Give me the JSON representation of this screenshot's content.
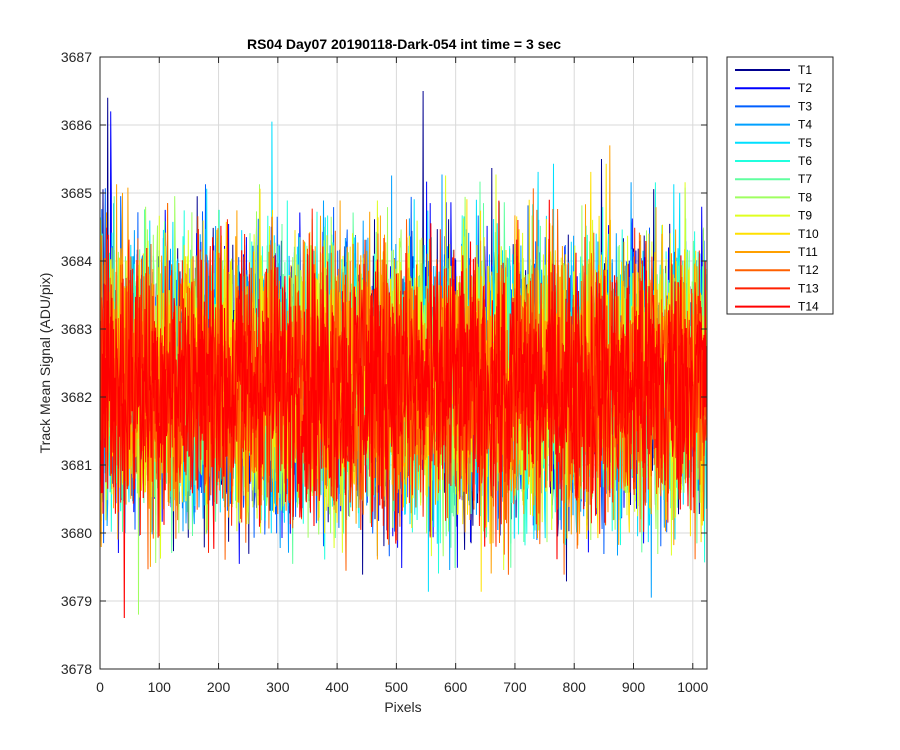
{
  "chart_data": {
    "type": "line",
    "title": "RS04 Day07 20190118-Dark-054 int time = 3 sec",
    "xlabel": "Pixels",
    "ylabel": "Track Mean Signal (ADU/pix)",
    "xlim": [
      0,
      1024
    ],
    "ylim": [
      3678,
      3687
    ],
    "xticks": [
      0,
      100,
      200,
      300,
      400,
      500,
      600,
      700,
      800,
      900,
      1000
    ],
    "yticks": [
      3678,
      3679,
      3680,
      3681,
      3682,
      3683,
      3684,
      3685,
      3686,
      3687
    ],
    "grid": true,
    "legend_position": "outside-top-right",
    "series_style": "noisy per-pixel signal around mean ~3682.2 ADU, range ~3679–3686.5",
    "series": [
      {
        "name": "T1",
        "color": "#00008f",
        "mean": 3682.3,
        "spread": 1.1,
        "peaks": [
          [
            13,
            3686.4
          ],
          [
            545,
            3686.5
          ]
        ]
      },
      {
        "name": "T2",
        "color": "#0000ff",
        "mean": 3682.3,
        "spread": 1.1,
        "peaks": [
          [
            18,
            3686.2
          ]
        ]
      },
      {
        "name": "T3",
        "color": "#005fff",
        "mean": 3682.3,
        "spread": 1.1,
        "peaks": []
      },
      {
        "name": "T4",
        "color": "#00a0ff",
        "mean": 3682.3,
        "spread": 1.1,
        "peaks": [
          [
            930,
            3679.05
          ]
        ]
      },
      {
        "name": "T5",
        "color": "#00dfff",
        "mean": 3682.3,
        "spread": 1.1,
        "peaks": [
          [
            290,
            3686.05
          ]
        ]
      },
      {
        "name": "T6",
        "color": "#20ffdf",
        "mean": 3682.3,
        "spread": 1.1,
        "peaks": []
      },
      {
        "name": "T7",
        "color": "#60ff9f",
        "mean": 3682.3,
        "spread": 1.1,
        "peaks": []
      },
      {
        "name": "T8",
        "color": "#9fff60",
        "mean": 3682.3,
        "spread": 1.1,
        "peaks": [
          [
            65,
            3678.8
          ]
        ]
      },
      {
        "name": "T9",
        "color": "#dfff20",
        "mean": 3682.3,
        "spread": 1.1,
        "peaks": []
      },
      {
        "name": "T10",
        "color": "#ffe000",
        "mean": 3682.3,
        "spread": 1.1,
        "peaks": []
      },
      {
        "name": "T11",
        "color": "#ffa000",
        "mean": 3682.3,
        "spread": 1.1,
        "peaks": [
          [
            860,
            3685.7
          ]
        ]
      },
      {
        "name": "T12",
        "color": "#ff6000",
        "mean": 3682.2,
        "spread": 1.1,
        "peaks": []
      },
      {
        "name": "T13",
        "color": "#ff2000",
        "mean": 3682.2,
        "spread": 1.0,
        "peaks": []
      },
      {
        "name": "T14",
        "color": "#ff0000",
        "mean": 3682.2,
        "spread": 1.0,
        "peaks": [
          [
            41,
            3678.75
          ]
        ]
      }
    ]
  }
}
